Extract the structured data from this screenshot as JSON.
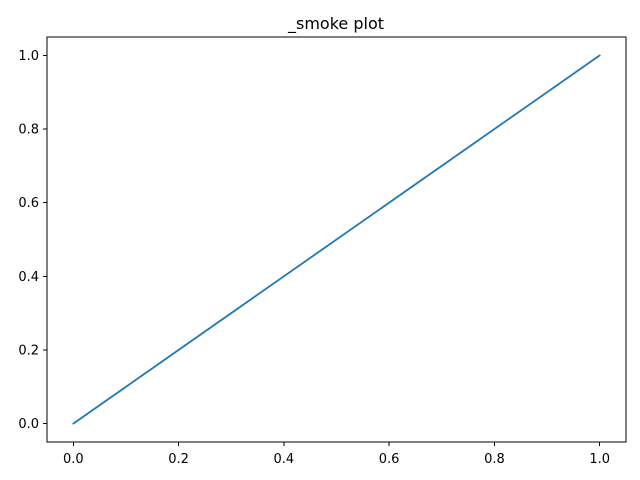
{
  "chart_data": {
    "type": "line",
    "title": "_smoke plot",
    "xlabel": "",
    "ylabel": "",
    "xlim": [
      -0.05,
      1.05
    ],
    "ylim": [
      -0.05,
      1.05
    ],
    "x_ticks": [
      0.0,
      0.2,
      0.4,
      0.6,
      0.8,
      1.0
    ],
    "y_ticks": [
      0.0,
      0.2,
      0.4,
      0.6,
      0.8,
      1.0
    ],
    "x_tick_labels": [
      "0.0",
      "0.2",
      "0.4",
      "0.6",
      "0.8",
      "1.0"
    ],
    "y_tick_labels": [
      "0.0",
      "0.2",
      "0.4",
      "0.6",
      "0.8",
      "1.0"
    ],
    "grid": false,
    "legend": "none",
    "series": [
      {
        "x": [
          0.0,
          1.0
        ],
        "y": [
          0.0,
          1.0
        ],
        "color": "#1f77b4"
      }
    ]
  }
}
